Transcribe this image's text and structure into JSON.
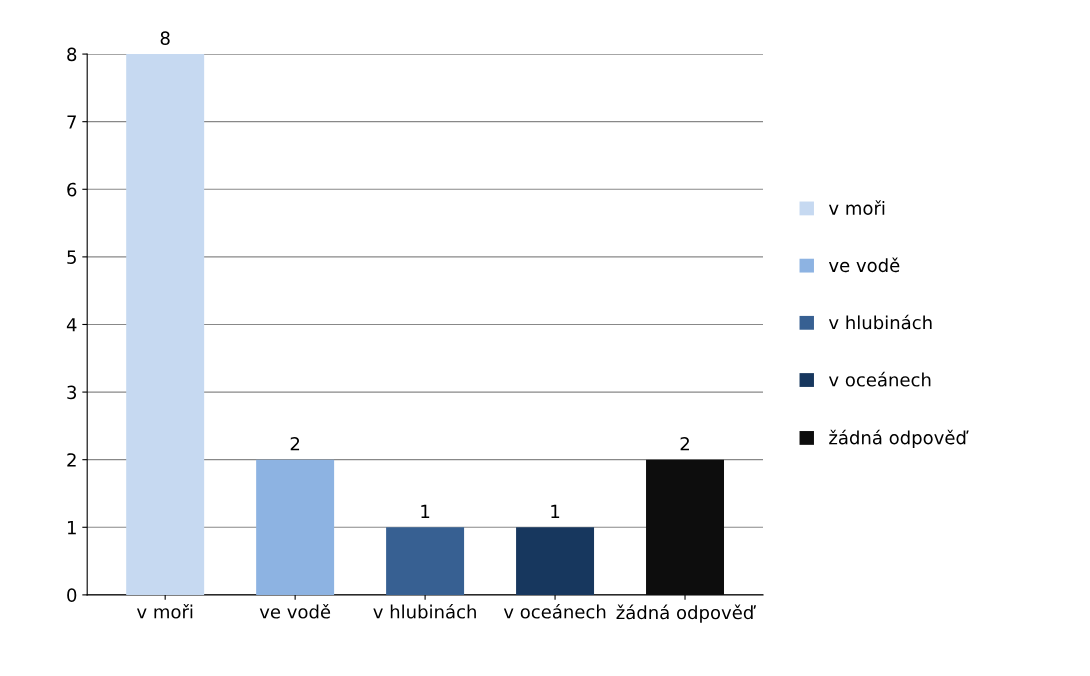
{
  "chart_data": {
    "type": "bar",
    "categories": [
      "v moři",
      "ve vodě",
      "v hlubinách",
      "v oceánech",
      "žádná odpověď"
    ],
    "series": [
      {
        "name": "v moři",
        "color": "#c6d9f1",
        "values": [
          8,
          null,
          null,
          null,
          null
        ]
      },
      {
        "name": "ve vodě",
        "color": "#8db3e2",
        "values": [
          null,
          2,
          null,
          null,
          null
        ]
      },
      {
        "name": "v hlubinách",
        "color": "#376092",
        "values": [
          null,
          null,
          1,
          null,
          null
        ]
      },
      {
        "name": "v oceánech",
        "color": "#17375e",
        "values": [
          null,
          null,
          null,
          1,
          null
        ]
      },
      {
        "name": "žádná odpověď",
        "color": "#0d0d0d",
        "values": [
          null,
          null,
          null,
          null,
          2
        ]
      }
    ],
    "ylim": [
      0,
      8
    ],
    "yticks": [
      0,
      1,
      2,
      3,
      4,
      5,
      6,
      7,
      8
    ],
    "grid": "y",
    "legend": "right",
    "data_labels": true
  }
}
